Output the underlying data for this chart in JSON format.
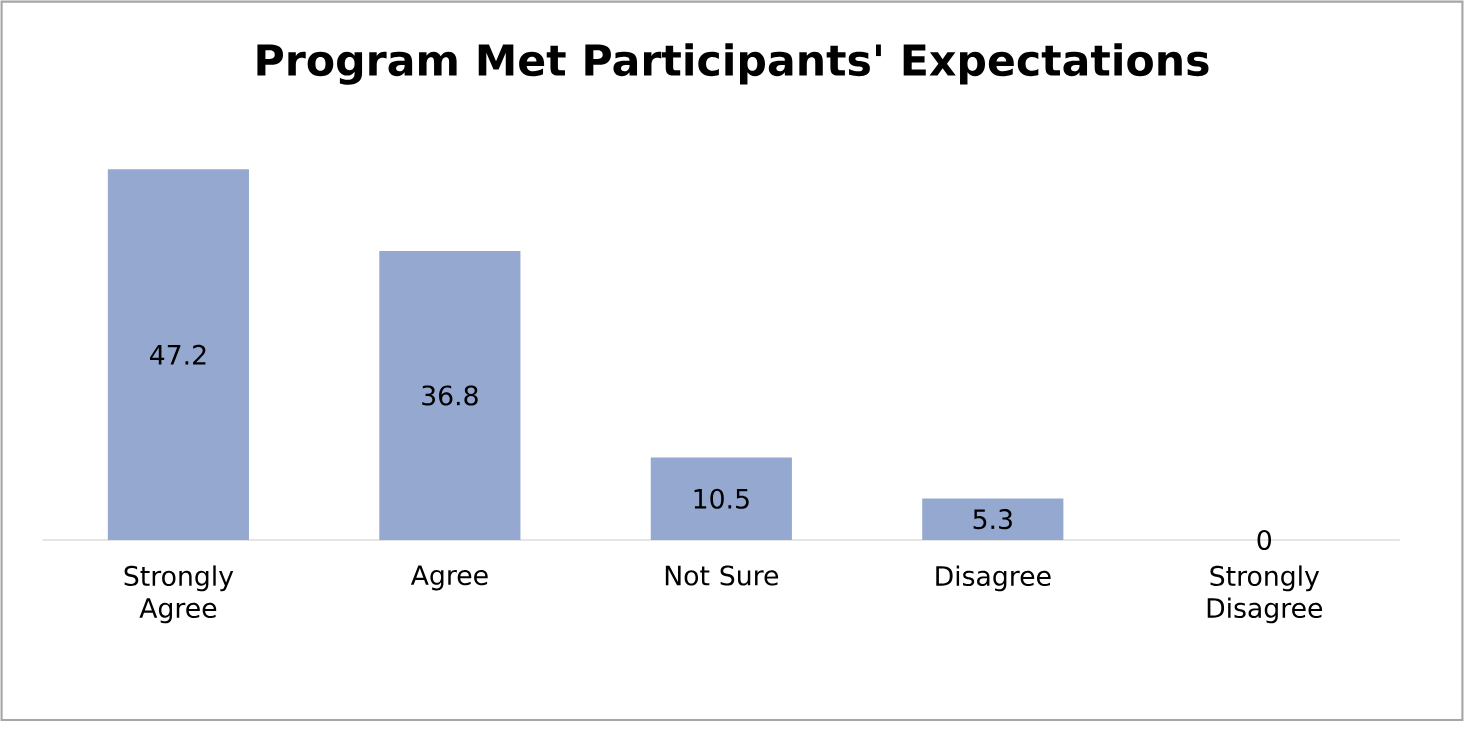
{
  "chart_data": {
    "type": "bar",
    "title": "Program Met Participants' Expectations",
    "categories": [
      "Strongly Agree",
      "Agree",
      "Not Sure",
      "Disagree",
      "Strongly Disagree"
    ],
    "values": [
      47.2,
      36.8,
      10.5,
      5.3,
      0
    ],
    "color": "#95a9d0",
    "data_labels": true
  }
}
